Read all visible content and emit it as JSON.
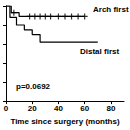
{
  "chart_data": {
    "type": "line",
    "x_label": "Time since surgery (months)",
    "annotations": [
      "p=0.0692"
    ],
    "xlim": [
      0,
      90
    ],
    "xticks": [
      0,
      20,
      40,
      60,
      80
    ],
    "ylim": [
      0,
      1
    ],
    "yticks": [
      0,
      0.2,
      0.4,
      0.6,
      0.8,
      1
    ],
    "tick_labels": "x",
    "grid": false,
    "series": [
      {
        "name": "Arch first",
        "color": "#000000",
        "line_style": "step",
        "x": [
          0,
          4,
          10,
          60
        ],
        "values": [
          1.0,
          0.93,
          0.89,
          0.89
        ],
        "marker": "plus",
        "censored": [
          [
            6,
            0.93
          ],
          [
            18,
            0.89
          ],
          [
            22,
            0.89
          ],
          [
            26,
            0.89
          ],
          [
            30,
            0.89
          ],
          [
            34,
            0.89
          ],
          [
            40,
            0.89
          ],
          [
            45,
            0.89
          ],
          [
            50,
            0.89
          ],
          [
            55,
            0.89
          ],
          [
            60,
            0.89
          ]
        ]
      },
      {
        "name": "Distal first",
        "color": "#000000",
        "line_style": "step",
        "x": [
          0,
          3,
          8,
          14,
          20,
          26,
          70
        ],
        "values": [
          1.0,
          0.88,
          0.8,
          0.75,
          0.7,
          0.62,
          0.62
        ]
      }
    ]
  }
}
